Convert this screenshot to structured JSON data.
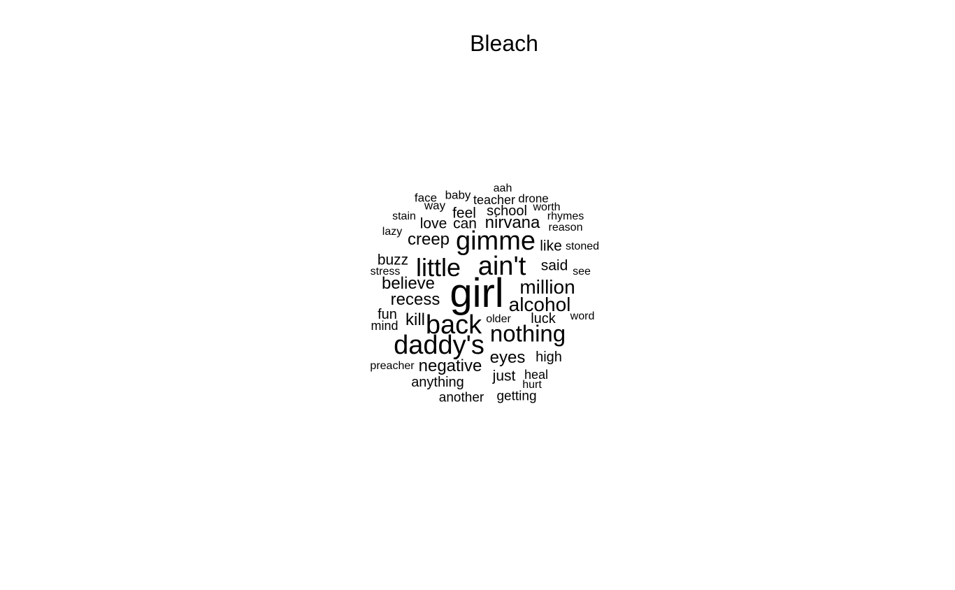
{
  "title": "Bleach",
  "words": [
    {
      "text": "girl",
      "weight": 10
    },
    {
      "text": "ain't",
      "weight": 7
    },
    {
      "text": "gimme",
      "weight": 7
    },
    {
      "text": "daddy's",
      "weight": 7
    },
    {
      "text": "back",
      "weight": 7
    },
    {
      "text": "little",
      "weight": 6
    },
    {
      "text": "nothing",
      "weight": 6
    },
    {
      "text": "million",
      "weight": 5
    },
    {
      "text": "alcohol",
      "weight": 5
    },
    {
      "text": "nirvana",
      "weight": 4
    },
    {
      "text": "creep",
      "weight": 4
    },
    {
      "text": "believe",
      "weight": 4
    },
    {
      "text": "recess",
      "weight": 4
    },
    {
      "text": "negative",
      "weight": 4
    },
    {
      "text": "eyes",
      "weight": 4
    },
    {
      "text": "kill",
      "weight": 4
    },
    {
      "text": "buzz",
      "weight": 3
    },
    {
      "text": "said",
      "weight": 3
    },
    {
      "text": "just",
      "weight": 3
    },
    {
      "text": "school",
      "weight": 3
    },
    {
      "text": "feel",
      "weight": 3
    },
    {
      "text": "love",
      "weight": 3
    },
    {
      "text": "can",
      "weight": 3
    },
    {
      "text": "like",
      "weight": 3
    },
    {
      "text": "fun",
      "weight": 3
    },
    {
      "text": "luck",
      "weight": 3
    },
    {
      "text": "anything",
      "weight": 3
    },
    {
      "text": "high",
      "weight": 3
    },
    {
      "text": "another",
      "weight": 2
    },
    {
      "text": "getting",
      "weight": 2
    },
    {
      "text": "heal",
      "weight": 2
    },
    {
      "text": "mind",
      "weight": 2
    },
    {
      "text": "teacher",
      "weight": 2
    },
    {
      "text": "drone",
      "weight": 2
    },
    {
      "text": "face",
      "weight": 2
    },
    {
      "text": "baby",
      "weight": 2
    },
    {
      "text": "way",
      "weight": 2
    },
    {
      "text": "aah",
      "weight": 1
    },
    {
      "text": "worth",
      "weight": 1
    },
    {
      "text": "rhymes",
      "weight": 1
    },
    {
      "text": "reason",
      "weight": 1
    },
    {
      "text": "stoned",
      "weight": 1
    },
    {
      "text": "stain",
      "weight": 1
    },
    {
      "text": "lazy",
      "weight": 1
    },
    {
      "text": "stress",
      "weight": 1
    },
    {
      "text": "see",
      "weight": 1
    },
    {
      "text": "older",
      "weight": 1
    },
    {
      "text": "word",
      "weight": 1
    },
    {
      "text": "preacher",
      "weight": 1
    },
    {
      "text": "hurt",
      "weight": 1
    }
  ]
}
